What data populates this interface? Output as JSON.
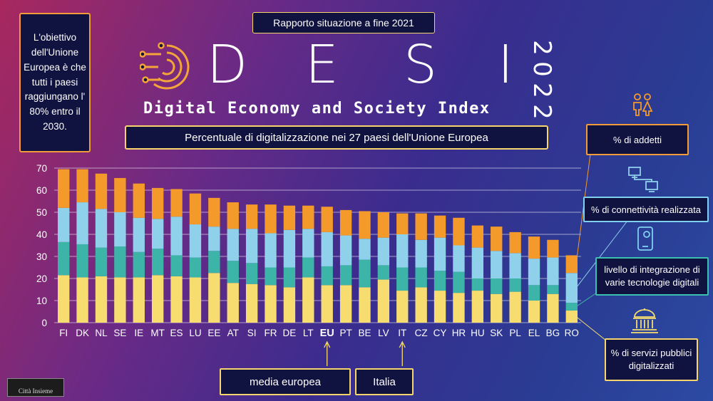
{
  "goal_text": "L'obiettivo dell'Unione Europea è che tutti i paesi raggiungano l' 80% entro il 2030.",
  "report_label": "Rapporto situazione a fine 2021",
  "logo": {
    "letters": [
      "D",
      "E",
      "S",
      "I"
    ],
    "subtitle": "Digital Economy and Society Index",
    "year": "2022"
  },
  "subtitle": "Percentuale di digitalizzazione nei 27 paesi dell'Unione Europea",
  "legend": {
    "addetti": "% di addetti",
    "connettivita": "% di connettività realizzata",
    "integrazione": "livello di integrazione di varie tecnologie digitali",
    "servizi": "% di servizi pubblici digitalizzati"
  },
  "annotations": {
    "media": "media europea",
    "italia": "Italia"
  },
  "watermark": "Città Insieme",
  "colors": {
    "servizi": "#f7dc6f",
    "integrazione": "#3cb5a8",
    "connettivita": "#8fd0ea",
    "addetti": "#f49a2a"
  },
  "chart_data": {
    "type": "bar",
    "stacked": true,
    "categories": [
      "FI",
      "DK",
      "NL",
      "SE",
      "IE",
      "MT",
      "ES",
      "LU",
      "EE",
      "AT",
      "SI",
      "FR",
      "DE",
      "LT",
      "EU",
      "PT",
      "BE",
      "LV",
      "IT",
      "CZ",
      "CY",
      "HR",
      "HU",
      "SK",
      "PL",
      "EL",
      "BG",
      "RO"
    ],
    "highlight": [
      "EU"
    ],
    "ylim": [
      0,
      70
    ],
    "yticks": [
      0,
      10,
      20,
      30,
      40,
      50,
      60,
      70
    ],
    "grid": true,
    "series": [
      {
        "name": "% di servizi pubblici digitalizzati",
        "color": "#f7dc6f",
        "values": [
          21.5,
          20.5,
          21,
          20.5,
          20.5,
          21.5,
          21,
          20.5,
          22.5,
          18,
          17.5,
          17,
          16,
          20.5,
          17,
          17,
          16,
          19.5,
          14.5,
          16,
          14.5,
          13.5,
          14.5,
          13,
          14,
          10,
          13,
          5.5
        ]
      },
      {
        "name": "livello di integrazione di varie tecnologie digitali",
        "color": "#3cb5a8",
        "values": [
          15,
          15,
          13,
          14,
          11.5,
          12,
          9.5,
          9,
          10,
          10,
          9.5,
          8,
          9,
          9,
          8.5,
          9,
          12.5,
          6.5,
          10.5,
          9,
          9,
          9.5,
          5.5,
          7,
          6,
          7,
          4,
          3.5
        ]
      },
      {
        "name": "% di connettività realizzata",
        "color": "#8fd0ea",
        "values": [
          15.5,
          19,
          17.5,
          15.5,
          15.5,
          13.5,
          17.5,
          15,
          11,
          14.5,
          15.5,
          15.5,
          17,
          13,
          15.5,
          13.5,
          9.5,
          12.5,
          15,
          12.5,
          15,
          12,
          14,
          12.5,
          11.5,
          12,
          12.5,
          13.5
        ]
      },
      {
        "name": "% di addetti",
        "color": "#f49a2a",
        "values": [
          17.5,
          15,
          16,
          15.5,
          15.5,
          14,
          12.5,
          14,
          13,
          12,
          11,
          13,
          11,
          10.5,
          11.5,
          11.5,
          12.5,
          11.5,
          9.5,
          12,
          10,
          12.5,
          10,
          11,
          9.5,
          10,
          8,
          8
        ]
      }
    ]
  }
}
